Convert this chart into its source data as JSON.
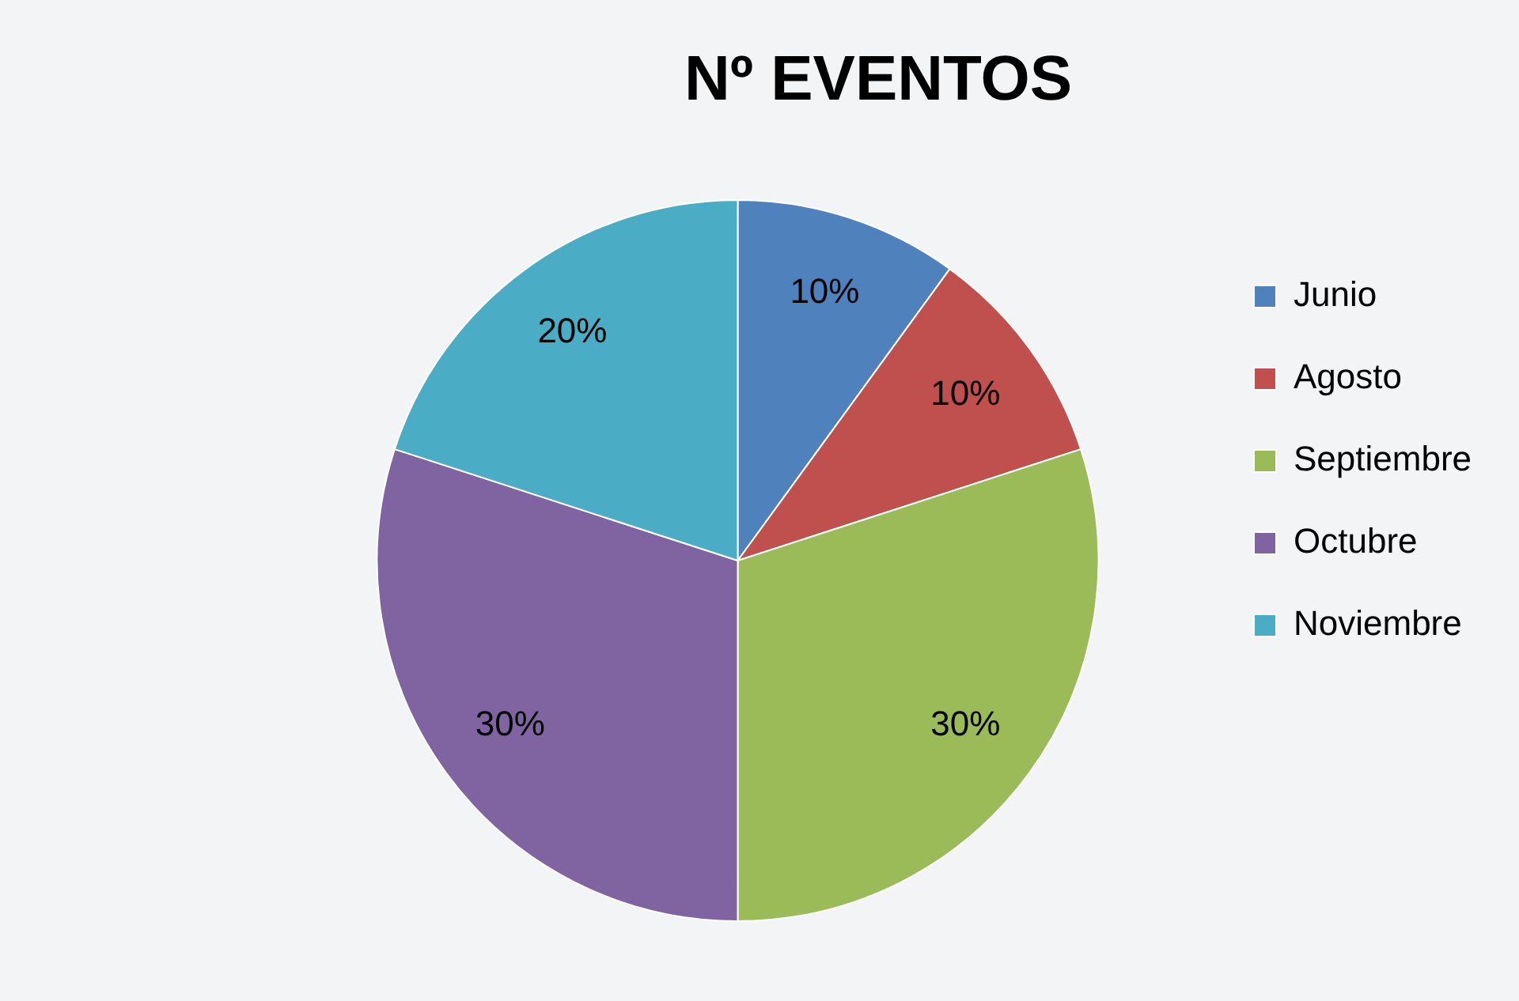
{
  "chart_data": {
    "type": "pie",
    "title": "Nº EVENTOS",
    "categories": [
      "Junio",
      "Agosto",
      "Septiembre",
      "Octubre",
      "Noviembre"
    ],
    "values": [
      10,
      10,
      30,
      30,
      20
    ],
    "value_labels": [
      "10%",
      "10%",
      "30%",
      "30%",
      "20%"
    ],
    "colors": [
      "#4f81bd",
      "#c0504d",
      "#9bbb59",
      "#8064a2",
      "#4bacc6"
    ],
    "legend": "right"
  }
}
